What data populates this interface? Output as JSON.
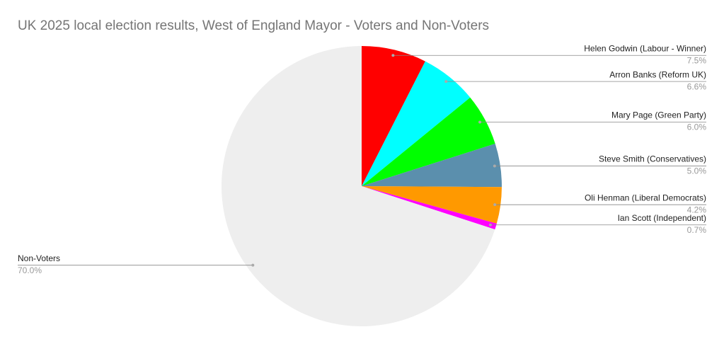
{
  "chart_data": {
    "type": "pie",
    "title": "UK 2025 local election results, West of England Mayor - Voters and Non-Voters",
    "categories": [
      "Helen Godwin (Labour - Winner)",
      "Arron Banks (Reform UK)",
      "Mary Page (Green Party)",
      "Steve Smith (Conservatives)",
      "Oli Henman (Liberal Democrats)",
      "Ian Scott (Independent)",
      "Non-Voters"
    ],
    "values": [
      7.5,
      6.6,
      6.0,
      5.0,
      4.2,
      0.7,
      70.0
    ],
    "value_labels": [
      "7.5%",
      "6.6%",
      "6.0%",
      "5.0%",
      "4.2%",
      "0.7%",
      "70.0%"
    ],
    "colors": [
      "#ff0000",
      "#00ffff",
      "#00ff00",
      "#5b8fad",
      "#ff9900",
      "#ff00ff",
      "#eeeeee"
    ]
  }
}
